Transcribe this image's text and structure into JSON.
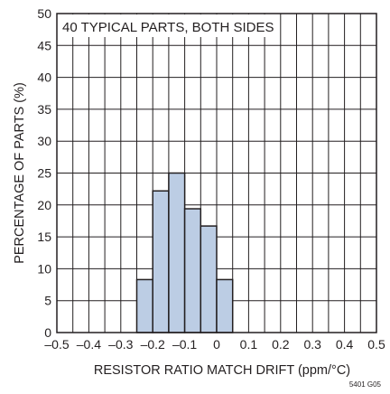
{
  "chart_data": {
    "type": "bar",
    "annotation": "40 TYPICAL PARTS, BOTH SIDES",
    "xlabel": "RESISTOR RATIO MATCH DRIFT (ppm/°C)",
    "ylabel": "PERCENTAGE OF PARTS (%)",
    "figure_id": "5401 G05",
    "xlim": [
      -0.5,
      0.5
    ],
    "ylim": [
      0,
      50
    ],
    "x_ticks": [
      "–0.5",
      "–0.4",
      "–0.3",
      "–0.2",
      "–0.1",
      "0",
      "0.1",
      "0.2",
      "0.3",
      "0.4",
      "0.5"
    ],
    "x_tick_values": [
      -0.5,
      -0.4,
      -0.3,
      -0.2,
      -0.1,
      0,
      0.1,
      0.2,
      0.3,
      0.4,
      0.5
    ],
    "y_ticks": [
      "0",
      "5",
      "10",
      "15",
      "20",
      "25",
      "30",
      "35",
      "40",
      "45",
      "50"
    ],
    "y_tick_values": [
      0,
      5,
      10,
      15,
      20,
      25,
      30,
      35,
      40,
      45,
      50
    ],
    "grid": true,
    "bin_width": 0.05,
    "bins": [
      {
        "start": -0.25,
        "end": -0.2,
        "value": 8.3
      },
      {
        "start": -0.2,
        "end": -0.15,
        "value": 22.2
      },
      {
        "start": -0.15,
        "end": -0.1,
        "value": 25.0
      },
      {
        "start": -0.1,
        "end": -0.05,
        "value": 19.4
      },
      {
        "start": -0.05,
        "end": 0.0,
        "value": 16.7
      },
      {
        "start": 0.0,
        "end": 0.05,
        "value": 8.3
      }
    ],
    "colors": {
      "bar_fill": "#bccde4",
      "bar_stroke": "#231f20",
      "grid": "#231f20",
      "text": "#231f20"
    }
  }
}
